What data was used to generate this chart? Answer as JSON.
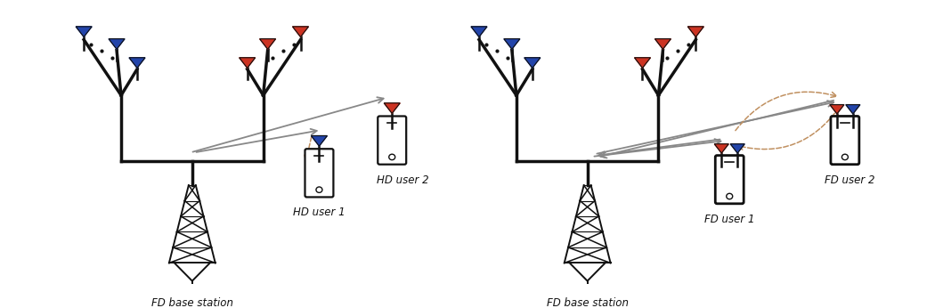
{
  "bg_color": "#ffffff",
  "arrow_color": "#888888",
  "dashed_color": "#c09060",
  "antenna_blue": "#2244aa",
  "antenna_red": "#cc3322",
  "line_color": "#111111",
  "text_color": "#111111",
  "left_panel": {
    "label_bs": "FD base station",
    "label_u1": "HD user 1",
    "label_u2": "HD user 2"
  },
  "right_panel": {
    "label_bs": "FD base station",
    "label_u1": "FD user 1",
    "label_u2": "FD user 2"
  },
  "font_size": 8.5
}
